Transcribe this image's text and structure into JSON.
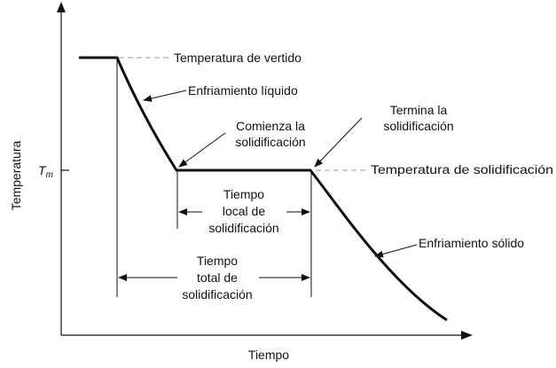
{
  "axes": {
    "x_label": "Tiempo",
    "y_label": "Temperatura",
    "y_tick_label": "T",
    "y_tick_subscript": "m"
  },
  "labels": {
    "pouring_temperature": "Temperatura de vertido",
    "liquid_cooling": "Enfriamiento líquido",
    "solidification_starts_line1": "Comienza la",
    "solidification_starts_line2": "solidificación",
    "solidification_ends_line1": "Termina la",
    "solidification_ends_line2": "solidificación",
    "solidification_temperature": "Temperatura de solidificación",
    "local_time_line1": "Tiempo",
    "local_time_line2": "local de",
    "local_time_line3": "solidificación",
    "total_time_line1": "Tiempo",
    "total_time_line2": "total de",
    "total_time_line3": "solidificación",
    "solid_cooling": "Enfriamiento sólido"
  },
  "colors": {
    "ink": "#111111",
    "guide": "#999999",
    "background": "#ffffff"
  }
}
